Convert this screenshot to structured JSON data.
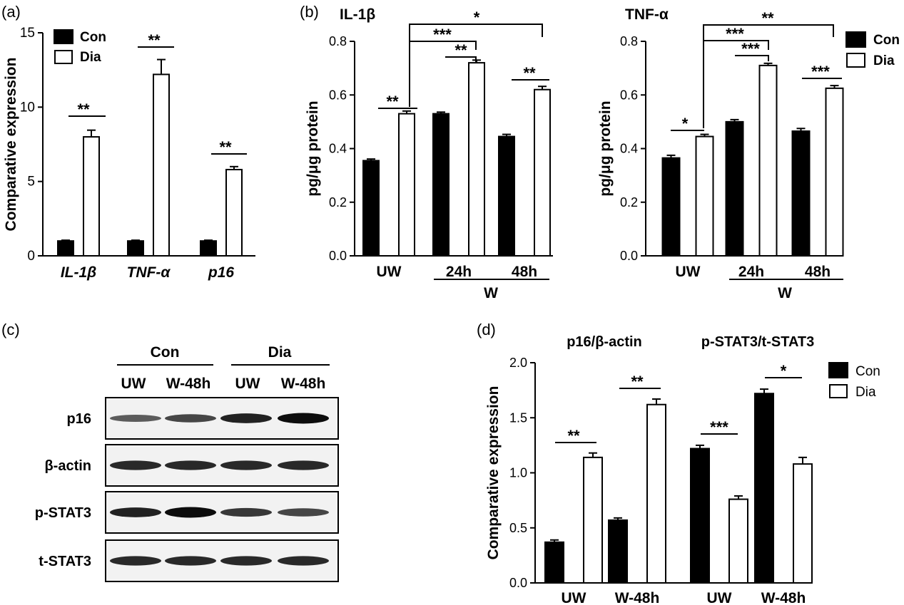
{
  "panel_labels": {
    "a": "(a)",
    "b": "(b)",
    "c": "(c)",
    "d": "(d)"
  },
  "colors": {
    "con": "#000000",
    "dia": "#ffffff",
    "stroke": "#000000"
  },
  "legend": {
    "con": "Con",
    "dia": "Dia"
  },
  "chart_data": [
    {
      "id": "a",
      "type": "bar",
      "title": "",
      "ylabel": "Comparative expression",
      "xlabel": "",
      "ylim": [
        0,
        15
      ],
      "yticks": [
        "0",
        "5",
        "10",
        "15"
      ],
      "categories": [
        "IL-1β",
        "TNF-α",
        "p16"
      ],
      "series": [
        {
          "name": "Con",
          "values": [
            1.0,
            1.0,
            1.0
          ],
          "errors": [
            0.05,
            0.05,
            0.05
          ]
        },
        {
          "name": "Dia",
          "values": [
            8.0,
            12.2,
            5.8
          ],
          "errors": [
            0.45,
            1.0,
            0.2
          ]
        }
      ],
      "significance": [
        {
          "label": "**"
        },
        {
          "label": "**"
        },
        {
          "label": "**"
        }
      ],
      "legend_position": "top-right"
    },
    {
      "id": "b1",
      "type": "bar",
      "title": "IL-1β",
      "ylabel": "pg/μg protein",
      "xlabel": "",
      "ylim": [
        0,
        0.8
      ],
      "yticks": [
        "0.0",
        "0.2",
        "0.4",
        "0.6",
        "0.8"
      ],
      "categories": [
        "UW",
        "24h",
        "48h"
      ],
      "group_label": "W",
      "series": [
        {
          "name": "Con",
          "values": [
            0.355,
            0.53,
            0.445
          ],
          "errors": [
            0.006,
            0.006,
            0.008
          ]
        },
        {
          "name": "Dia",
          "values": [
            0.53,
            0.72,
            0.62
          ],
          "errors": [
            0.01,
            0.01,
            0.012
          ]
        }
      ],
      "significance": [
        {
          "label": "**"
        },
        {
          "label": "**"
        },
        {
          "label": "**"
        },
        {
          "label": "***"
        },
        {
          "label": "*"
        }
      ]
    },
    {
      "id": "b2",
      "type": "bar",
      "title": "TNF-α",
      "ylabel": "pg/μg protein",
      "xlabel": "",
      "ylim": [
        0,
        0.8
      ],
      "yticks": [
        "0.0",
        "0.2",
        "0.4",
        "0.6",
        "0.8"
      ],
      "categories": [
        "UW",
        "24h",
        "48h"
      ],
      "group_label": "W",
      "series": [
        {
          "name": "Con",
          "values": [
            0.365,
            0.5,
            0.465
          ],
          "errors": [
            0.01,
            0.008,
            0.01
          ]
        },
        {
          "name": "Dia",
          "values": [
            0.445,
            0.71,
            0.625
          ],
          "errors": [
            0.008,
            0.008,
            0.01
          ]
        }
      ],
      "significance": [
        {
          "label": "*"
        },
        {
          "label": "***"
        },
        {
          "label": "***"
        },
        {
          "label": "***"
        },
        {
          "label": "**"
        }
      ],
      "legend_position": "top-right"
    },
    {
      "id": "d",
      "type": "bar",
      "title": "",
      "ylabel": "Comparative expression",
      "xlabel": "",
      "ylim": [
        0,
        2.0
      ],
      "yticks": [
        "0.0",
        "0.5",
        "1.0",
        "1.5",
        "2.0"
      ],
      "subtitles": [
        "p16/β-actin",
        "p-STAT3/t-STAT3"
      ],
      "categories": [
        "UW",
        "W-48h",
        "UW",
        "W-48h"
      ],
      "series": [
        {
          "name": "Con",
          "values": [
            0.37,
            0.57,
            1.22,
            1.72
          ],
          "errors": [
            0.02,
            0.02,
            0.03,
            0.04
          ]
        },
        {
          "name": "Dia",
          "values": [
            1.14,
            1.62,
            0.76,
            1.08
          ],
          "errors": [
            0.04,
            0.05,
            0.03,
            0.06
          ]
        }
      ],
      "significance": [
        {
          "label": "**"
        },
        {
          "label": "**"
        },
        {
          "label": "***"
        },
        {
          "label": "*"
        }
      ],
      "legend_position": "top-right"
    }
  ],
  "blot": {
    "groups": [
      "Con",
      "Dia"
    ],
    "lanes": [
      "UW",
      "W-48h",
      "UW",
      "W-48h"
    ],
    "rows": [
      {
        "label": "p16",
        "intensity": [
          0.45,
          0.6,
          0.85,
          1.0
        ]
      },
      {
        "label": "β-actin",
        "intensity": [
          0.8,
          0.8,
          0.8,
          0.8
        ]
      },
      {
        "label": "p-STAT3",
        "intensity": [
          0.85,
          1.0,
          0.7,
          0.6
        ]
      },
      {
        "label": "t-STAT3",
        "intensity": [
          0.8,
          0.8,
          0.8,
          0.8
        ]
      }
    ]
  }
}
